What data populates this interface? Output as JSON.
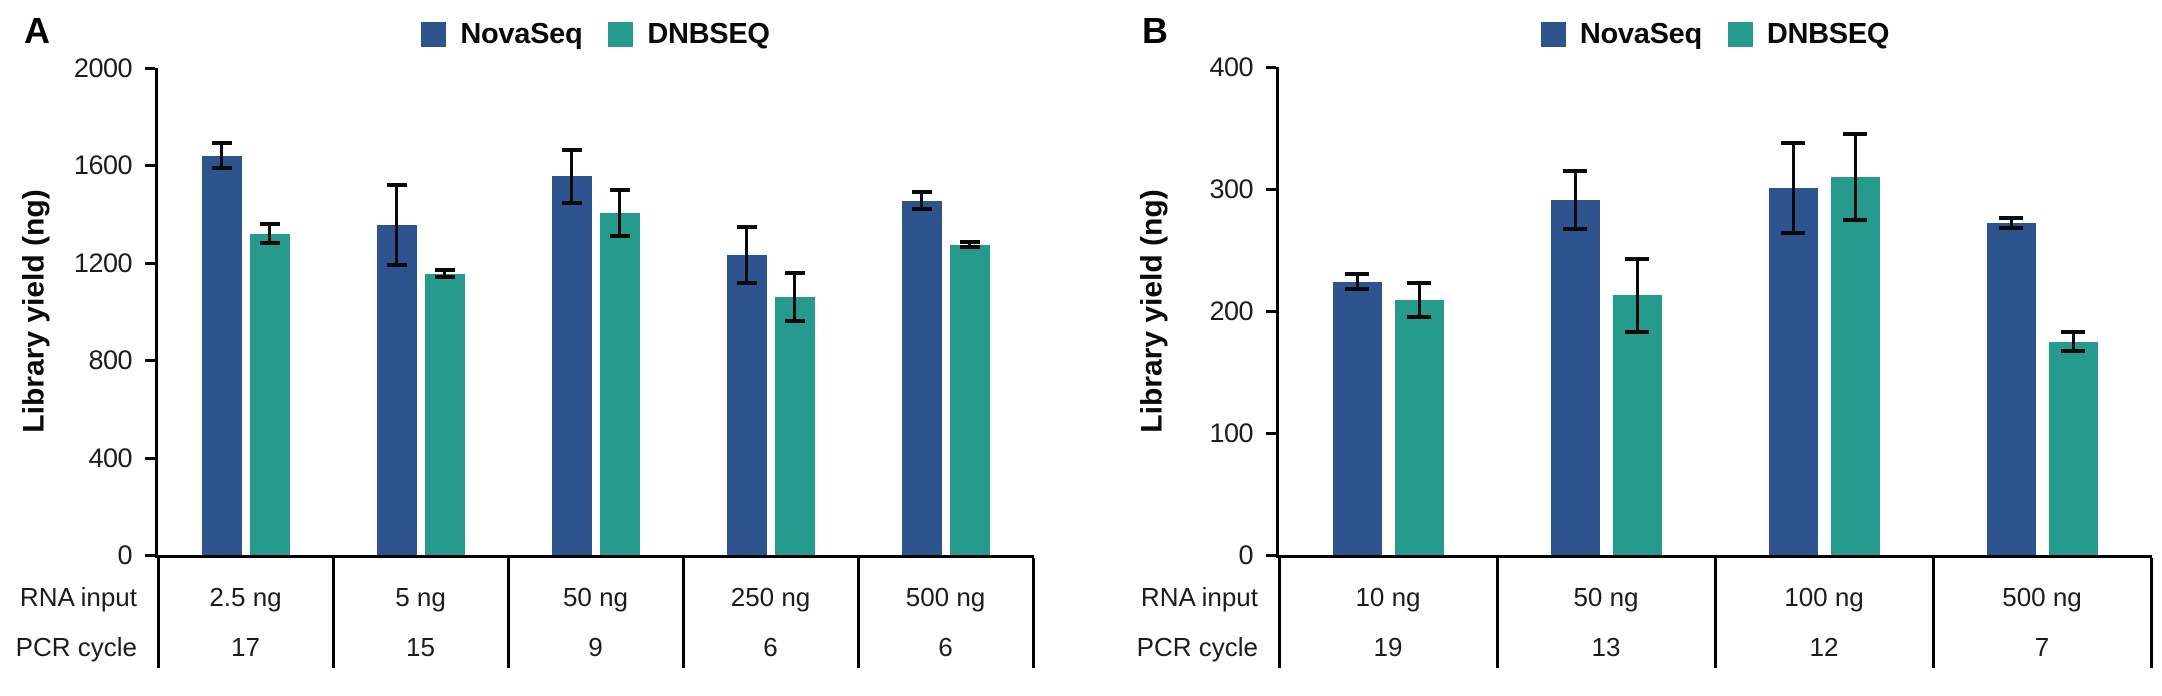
{
  "figure": {
    "background": "#ffffff",
    "text_color": "#1c1c1c",
    "line_color": "#000000"
  },
  "chart_data": [
    {
      "type": "bar",
      "panel_label": "A",
      "ylabel": "Library yield (ng)",
      "ylim": [
        0,
        2000
      ],
      "yticks": [
        0,
        400,
        800,
        1200,
        1600,
        2000
      ],
      "grid": false,
      "legend_position": "top-center",
      "row_headers": [
        "RNA input",
        "PCR cycle"
      ],
      "categories": [
        "2.5 ng",
        "5 ng",
        "50 ng",
        "250 ng",
        "500 ng"
      ],
      "pcr_cycles": [
        "17",
        "15",
        "9",
        "6",
        "6"
      ],
      "series": [
        {
          "name": "NovaSeq",
          "color": "#2e5490",
          "values": [
            1640,
            1355,
            1555,
            1230,
            1455
          ],
          "errors": [
            50,
            165,
            110,
            115,
            35
          ]
        },
        {
          "name": "DNBSEQ",
          "color": "#269a8c",
          "values": [
            1320,
            1155,
            1405,
            1060,
            1275
          ],
          "errors": [
            38,
            15,
            95,
            100,
            10
          ]
        }
      ]
    },
    {
      "type": "bar",
      "panel_label": "B",
      "ylabel": "Library yield (ng)",
      "ylim": [
        0,
        400
      ],
      "yticks": [
        0,
        100,
        200,
        300,
        400
      ],
      "grid": false,
      "legend_position": "top-center",
      "row_headers": [
        "RNA input",
        "PCR cycle"
      ],
      "categories": [
        "10 ng",
        "50 ng",
        "100 ng",
        "500 ng"
      ],
      "pcr_cycles": [
        "19",
        "13",
        "12",
        "7"
      ],
      "series": [
        {
          "name": "NovaSeq",
          "color": "#2e5490",
          "values": [
            224,
            291,
            301,
            272
          ],
          "errors": [
            6,
            24,
            37,
            4
          ]
        },
        {
          "name": "DNBSEQ",
          "color": "#269a8c",
          "values": [
            209,
            213,
            310,
            175
          ],
          "errors": [
            14,
            30,
            35,
            8
          ]
        }
      ]
    }
  ]
}
